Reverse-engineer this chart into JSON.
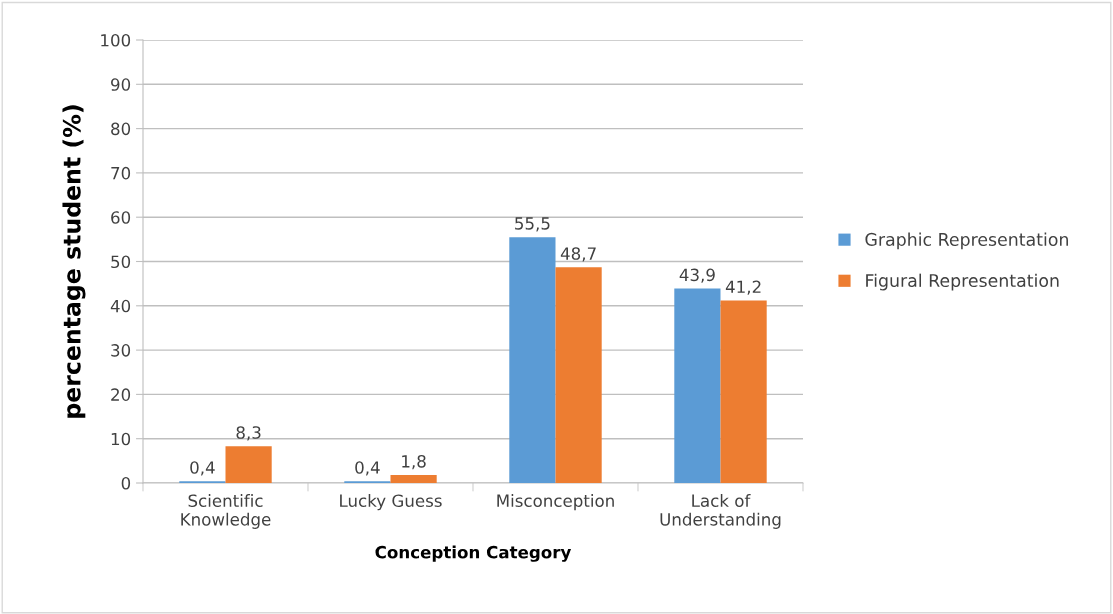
{
  "chart_data": {
    "type": "bar",
    "xlabel": "Conception Category",
    "ylabel": "percentage student (%)",
    "categories": [
      "Scientific\nKnowledge",
      "Lucky Guess",
      "Misconception",
      "Lack of\nUnderstanding"
    ],
    "series": [
      {
        "name": "Graphic Representation",
        "color": "#5b9bd5",
        "values": [
          0.4,
          0.4,
          55.5,
          43.9
        ],
        "value_labels": [
          "0,4",
          "0,4",
          "55,5",
          "43,9"
        ]
      },
      {
        "name": "Figural Representation",
        "color": "#ed7d31",
        "values": [
          8.3,
          1.8,
          48.7,
          41.2
        ],
        "value_labels": [
          "8,3",
          "1,8",
          "48,7",
          "41,2"
        ]
      }
    ],
    "ylim": [
      0,
      100
    ],
    "yticks": [
      0,
      10,
      20,
      30,
      40,
      50,
      60,
      70,
      80,
      90,
      100
    ],
    "grid": "y",
    "legend": "right"
  }
}
